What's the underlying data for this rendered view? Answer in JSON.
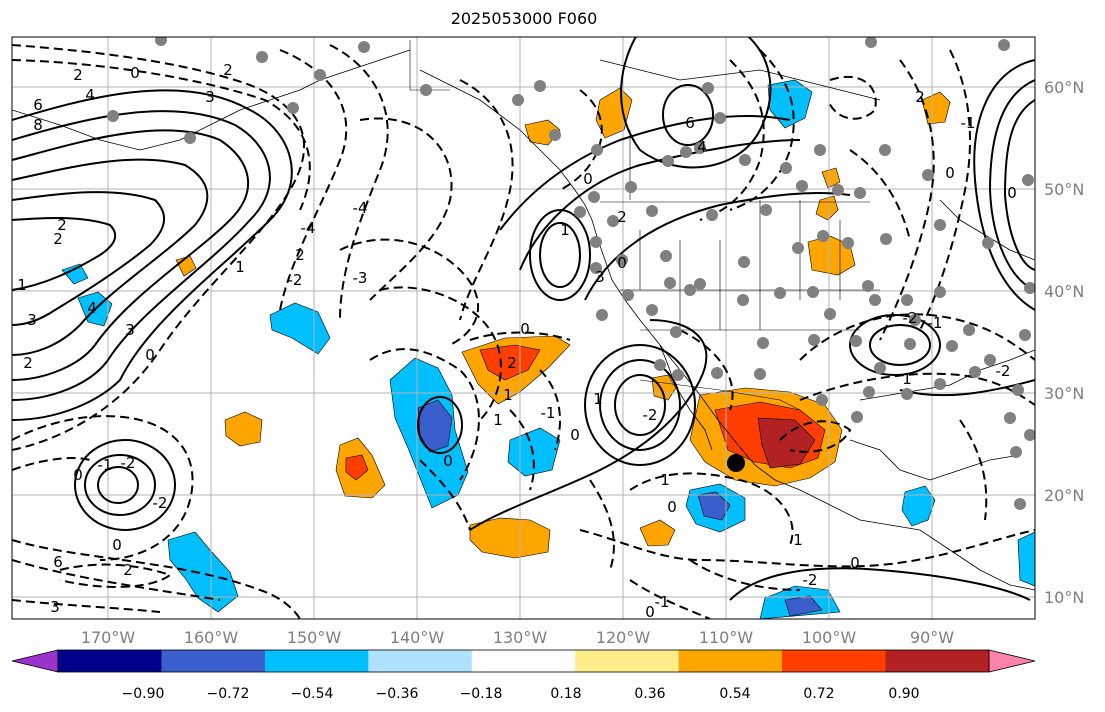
{
  "map": {
    "title": "2025053000 F060",
    "lon_labels": [
      "170°W",
      "160°W",
      "150°W",
      "140°W",
      "130°W",
      "120°W",
      "110°W",
      "100°W",
      "90°W"
    ],
    "lat_labels": [
      "60°N",
      "50°N",
      "40°N",
      "30°N",
      "20°N",
      "10°N"
    ],
    "contour_labels": [
      "0",
      "2",
      "4",
      "6",
      "8",
      "2",
      "2",
      "1",
      "3",
      "4",
      "3",
      "2",
      "3",
      "0",
      "2",
      "1",
      "2",
      "-4",
      "-2",
      "-4",
      "-3",
      "0",
      "2",
      "1",
      "1",
      "0",
      "3",
      "6",
      "4",
      "2",
      "1",
      "0",
      "0",
      "1",
      "-2",
      "-1",
      "0",
      "-1",
      "-2",
      "0",
      "-2",
      "0",
      "2",
      "6",
      "3",
      "-2",
      "0",
      "1",
      "1",
      "0",
      "-1",
      "0",
      "1",
      "-2",
      "-1",
      "-2",
      "2",
      "0",
      "-1",
      "0"
    ],
    "colorbar": {
      "ticks": [
        "−0.90",
        "−0.72",
        "−0.54",
        "−0.36",
        "−0.18",
        "0.18",
        "0.36",
        "0.54",
        "0.72",
        "0.90"
      ],
      "colors": [
        "#9a32cd",
        "#00008b",
        "#3a5fcd",
        "#00bfff",
        "#b0e2ff",
        "#ffffff",
        "#ffec8b",
        "#ffa500",
        "#ff3e00",
        "#b22222",
        "#ff82ab"
      ]
    },
    "marker": "black-dot"
  }
}
